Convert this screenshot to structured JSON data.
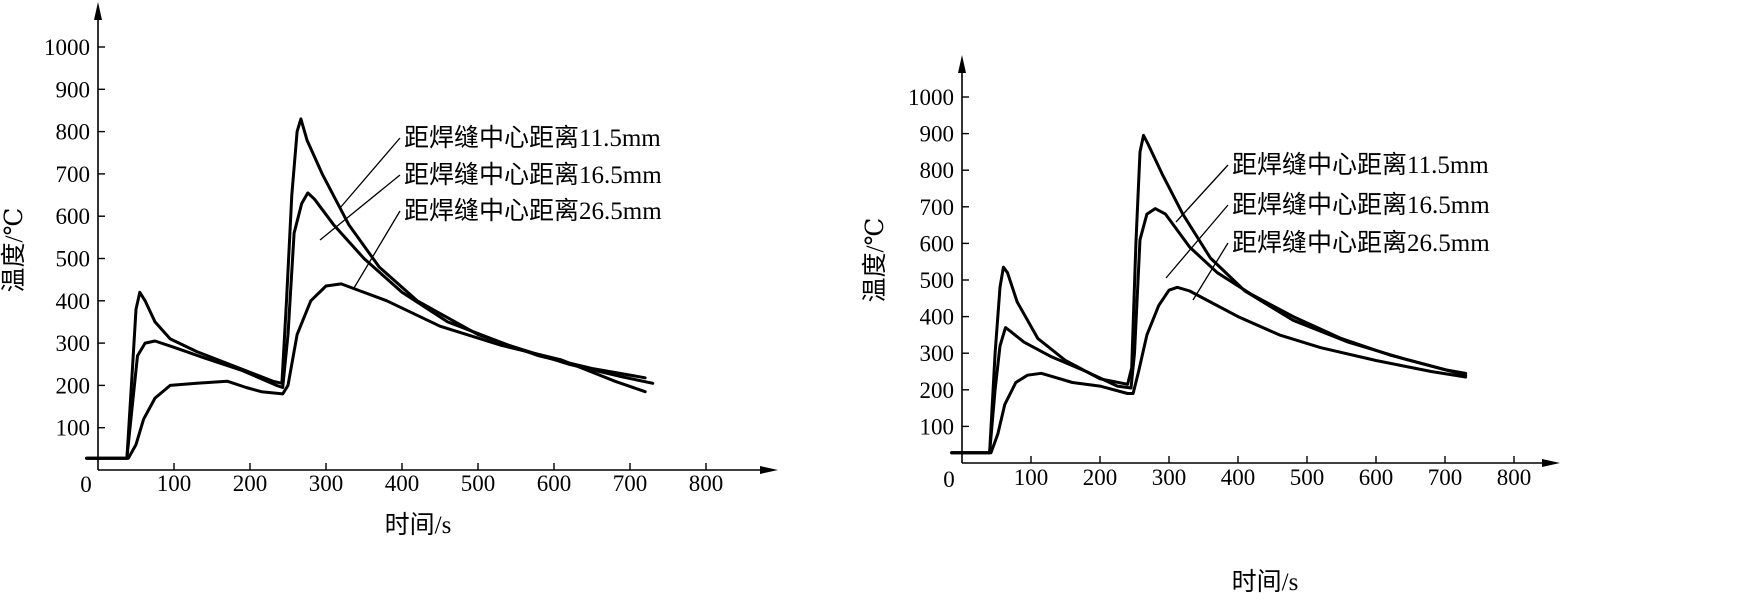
{
  "chart_data": [
    {
      "type": "line",
      "xlabel": "时间/s",
      "ylabel": "温度/℃",
      "origin_label": "0",
      "xlim": [
        0,
        800
      ],
      "ylim": [
        0,
        1000
      ],
      "xticks": [
        100,
        200,
        300,
        400,
        500,
        600,
        700,
        800
      ],
      "yticks": [
        100,
        200,
        300,
        400,
        500,
        600,
        700,
        800,
        900,
        1000
      ],
      "grid": false,
      "series": [
        {
          "name": "距焊缝中心距离11.5mm",
          "points": [
            [
              -15,
              28
            ],
            [
              38,
              28
            ],
            [
              45,
              230
            ],
            [
              50,
              380
            ],
            [
              55,
              420
            ],
            [
              62,
              400
            ],
            [
              75,
              350
            ],
            [
              95,
              310
            ],
            [
              130,
              280
            ],
            [
              180,
              245
            ],
            [
              230,
              210
            ],
            [
              242,
              205
            ],
            [
              248,
              400
            ],
            [
              255,
              650
            ],
            [
              262,
              800
            ],
            [
              267,
              830
            ],
            [
              275,
              780
            ],
            [
              295,
              700
            ],
            [
              330,
              580
            ],
            [
              370,
              480
            ],
            [
              420,
              400
            ],
            [
              500,
              320
            ],
            [
              580,
              270
            ],
            [
              650,
              240
            ],
            [
              720,
              218
            ]
          ]
        },
        {
          "name": "距焊缝中心距离16.5mm",
          "points": [
            [
              -15,
              28
            ],
            [
              38,
              28
            ],
            [
              45,
              150
            ],
            [
              52,
              270
            ],
            [
              62,
              300
            ],
            [
              75,
              305
            ],
            [
              100,
              290
            ],
            [
              140,
              265
            ],
            [
              190,
              235
            ],
            [
              235,
              200
            ],
            [
              243,
              195
            ],
            [
              250,
              320
            ],
            [
              258,
              560
            ],
            [
              268,
              630
            ],
            [
              276,
              655
            ],
            [
              285,
              640
            ],
            [
              310,
              580
            ],
            [
              350,
              500
            ],
            [
              400,
              420
            ],
            [
              460,
              350
            ],
            [
              540,
              295
            ],
            [
              620,
              250
            ],
            [
              690,
              220
            ],
            [
              730,
              205
            ]
          ]
        },
        {
          "name": "距焊缝中心距离26.5mm",
          "points": [
            [
              -15,
              28
            ],
            [
              40,
              28
            ],
            [
              50,
              60
            ],
            [
              60,
              120
            ],
            [
              75,
              170
            ],
            [
              95,
              200
            ],
            [
              130,
              205
            ],
            [
              170,
              210
            ],
            [
              195,
              195
            ],
            [
              215,
              185
            ],
            [
              243,
              180
            ],
            [
              250,
              200
            ],
            [
              262,
              320
            ],
            [
              280,
              400
            ],
            [
              300,
              435
            ],
            [
              320,
              440
            ],
            [
              335,
              430
            ],
            [
              380,
              400
            ],
            [
              450,
              340
            ],
            [
              530,
              295
            ],
            [
              610,
              260
            ],
            [
              680,
              210
            ],
            [
              720,
              185
            ]
          ]
        }
      ],
      "legend": [
        "距焊缝中心距离11.5mm",
        "距焊缝中心距离16.5mm",
        "距焊缝中心距离26.5mm"
      ]
    },
    {
      "type": "line",
      "xlabel": "时间/s",
      "ylabel": "温度/℃",
      "origin_label": "0",
      "xlim": [
        0,
        800
      ],
      "ylim": [
        0,
        1000
      ],
      "xticks": [
        100,
        200,
        300,
        400,
        500,
        600,
        700,
        800
      ],
      "yticks": [
        100,
        200,
        300,
        400,
        500,
        600,
        700,
        800,
        900,
        1000
      ],
      "grid": false,
      "series": [
        {
          "name": "距焊缝中心距离11.5mm",
          "points": [
            [
              -15,
              28
            ],
            [
              40,
              28
            ],
            [
              48,
              300
            ],
            [
              55,
              480
            ],
            [
              60,
              535
            ],
            [
              66,
              520
            ],
            [
              80,
              440
            ],
            [
              110,
              340
            ],
            [
              150,
              280
            ],
            [
              200,
              230
            ],
            [
              240,
              215
            ],
            [
              246,
              260
            ],
            [
              252,
              600
            ],
            [
              258,
              850
            ],
            [
              263,
              895
            ],
            [
              270,
              870
            ],
            [
              290,
              790
            ],
            [
              320,
              680
            ],
            [
              360,
              560
            ],
            [
              410,
              470
            ],
            [
              480,
              390
            ],
            [
              560,
              330
            ],
            [
              640,
              285
            ],
            [
              700,
              255
            ],
            [
              730,
              245
            ]
          ]
        },
        {
          "name": "距焊缝中心距离16.5mm",
          "points": [
            [
              -15,
              28
            ],
            [
              40,
              28
            ],
            [
              48,
              200
            ],
            [
              55,
              320
            ],
            [
              63,
              370
            ],
            [
              70,
              360
            ],
            [
              90,
              330
            ],
            [
              130,
              290
            ],
            [
              180,
              250
            ],
            [
              225,
              210
            ],
            [
              245,
              205
            ],
            [
              250,
              300
            ],
            [
              258,
              610
            ],
            [
              268,
              680
            ],
            [
              280,
              695
            ],
            [
              295,
              680
            ],
            [
              330,
              590
            ],
            [
              370,
              520
            ],
            [
              420,
              460
            ],
            [
              480,
              400
            ],
            [
              550,
              340
            ],
            [
              620,
              295
            ],
            [
              680,
              265
            ],
            [
              730,
              240
            ]
          ]
        },
        {
          "name": "距焊缝中心距离26.5mm",
          "points": [
            [
              -15,
              28
            ],
            [
              42,
              28
            ],
            [
              52,
              80
            ],
            [
              62,
              160
            ],
            [
              78,
              220
            ],
            [
              95,
              240
            ],
            [
              115,
              245
            ],
            [
              160,
              220
            ],
            [
              200,
              210
            ],
            [
              240,
              190
            ],
            [
              248,
              190
            ],
            [
              256,
              250
            ],
            [
              268,
              350
            ],
            [
              285,
              430
            ],
            [
              300,
              472
            ],
            [
              312,
              480
            ],
            [
              330,
              470
            ],
            [
              360,
              440
            ],
            [
              400,
              400
            ],
            [
              460,
              350
            ],
            [
              520,
              315
            ],
            [
              600,
              280
            ],
            [
              680,
              250
            ],
            [
              730,
              235
            ]
          ]
        }
      ],
      "legend": [
        "距焊缝中心距离11.5mm",
        "距焊缝中心距离16.5mm",
        "距焊缝中心距离26.5mm"
      ]
    }
  ]
}
